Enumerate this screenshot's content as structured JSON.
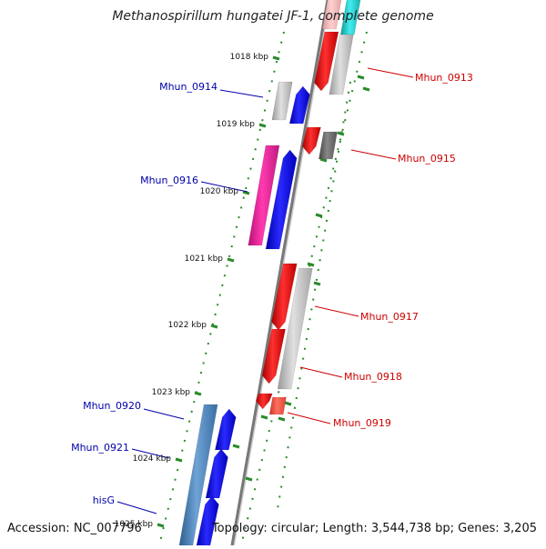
{
  "title": "Methanospirillum hungatei JF-1, complete genome",
  "footer": {
    "accession": "Accession: NC_007796",
    "info": "Topology: circular; Length: 3,544,738 bp; Genes: 3,205"
  },
  "ticks": [
    {
      "label": "1018 kbp",
      "name": "tick-1018"
    },
    {
      "label": "1019 kbp",
      "name": "tick-1019"
    },
    {
      "label": "1020 kbp",
      "name": "tick-1020"
    },
    {
      "label": "1021 kbp",
      "name": "tick-1021"
    },
    {
      "label": "1022 kbp",
      "name": "tick-1022"
    },
    {
      "label": "1023 kbp",
      "name": "tick-1023"
    },
    {
      "label": "1024 kbp",
      "name": "tick-1024"
    },
    {
      "label": "1025 kbp",
      "name": "tick-1025"
    }
  ],
  "gene_labels": [
    {
      "text": "Mhun_0913",
      "side": "right",
      "color": "#cc0000"
    },
    {
      "text": "Mhun_0914",
      "side": "left",
      "color": "#0000aa"
    },
    {
      "text": "Mhun_0915",
      "side": "right",
      "color": "#cc0000"
    },
    {
      "text": "Mhun_0916",
      "side": "left",
      "color": "#0000aa"
    },
    {
      "text": "Mhun_0917",
      "side": "right",
      "color": "#cc0000"
    },
    {
      "text": "Mhun_0918",
      "side": "right",
      "color": "#cc0000"
    },
    {
      "text": "Mhun_0919",
      "side": "right",
      "color": "#cc0000"
    },
    {
      "text": "Mhun_0920",
      "side": "left",
      "color": "#0000aa"
    },
    {
      "text": "Mhun_0921",
      "side": "left",
      "color": "#0000aa"
    },
    {
      "text": "hisG",
      "side": "left",
      "color": "#0000aa"
    }
  ],
  "colors": {
    "backbone": "#777777",
    "tick": "#2a8a2a",
    "forward_blue": "#0000ee",
    "reverse_red": "#ee0000",
    "pink": "#ee2299",
    "steel_blue": "#4a7fb5",
    "gray": "#bbbbbb",
    "dark_gray": "#666666",
    "cyan": "#22cccc"
  }
}
